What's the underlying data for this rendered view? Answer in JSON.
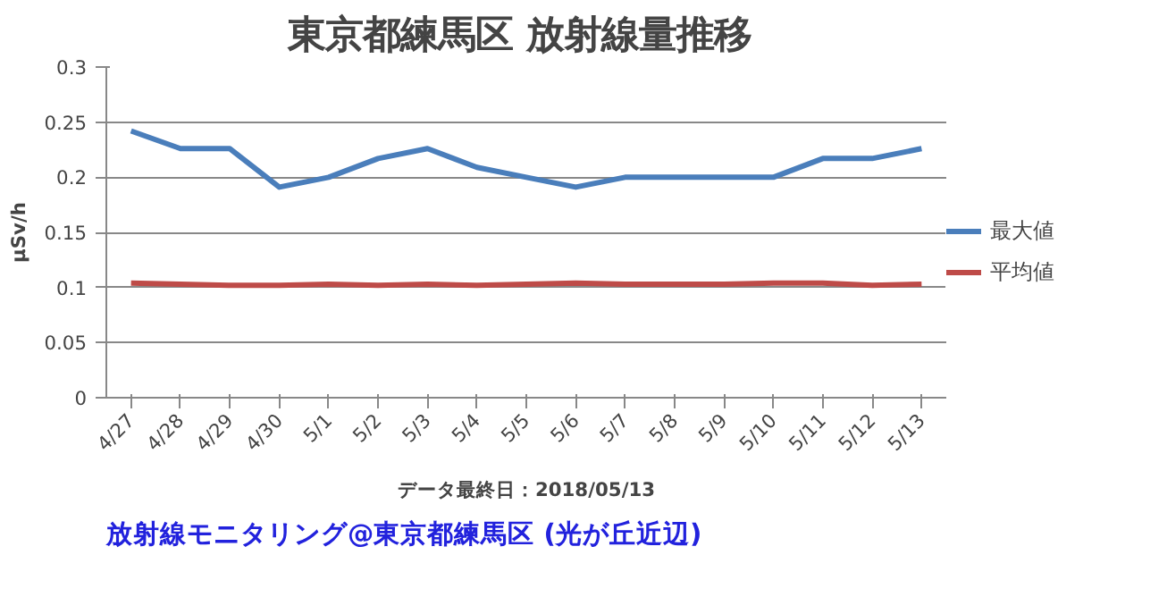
{
  "chart_data": {
    "type": "line",
    "title": "東京都練馬区  放射線量推移",
    "xlabel": "データ最終日：2018/05/13",
    "ylabel": "μSv/h",
    "categories": [
      "4/27",
      "4/28",
      "4/29",
      "4/30",
      "5/1",
      "5/2",
      "5/3",
      "5/4",
      "5/5",
      "5/6",
      "5/7",
      "5/8",
      "5/9",
      "5/10",
      "5/11",
      "5/12",
      "5/13"
    ],
    "series": [
      {
        "name": "最大値",
        "color": "#4a7ebb",
        "values": [
          0.242,
          0.226,
          0.226,
          0.191,
          0.2,
          0.217,
          0.226,
          0.209,
          0.2,
          0.191,
          0.2,
          0.2,
          0.2,
          0.2,
          0.217,
          0.217,
          0.226
        ]
      },
      {
        "name": "平均値",
        "color": "#be4b48",
        "values": [
          0.104,
          0.103,
          0.102,
          0.102,
          0.103,
          0.102,
          0.103,
          0.102,
          0.103,
          0.104,
          0.103,
          0.103,
          0.103,
          0.104,
          0.104,
          0.102,
          0.103
        ]
      }
    ],
    "ylim": [
      0,
      0.3
    ],
    "yticks": [
      0,
      0.05,
      0.1,
      0.15,
      0.2,
      0.25,
      0.3
    ],
    "grid": "y",
    "legend": "right",
    "marker": "none",
    "line_style": "solid",
    "annotations": [
      "放射線モニタリング@東京都練馬区 (光が丘近辺)"
    ]
  }
}
